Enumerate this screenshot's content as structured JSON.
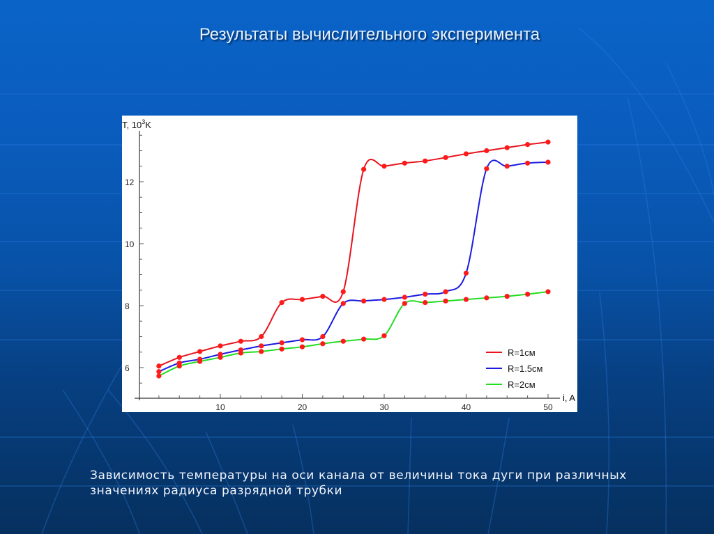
{
  "slide": {
    "title": "Результаты вычислительного эксперимента",
    "caption_lines": [
      "Зависимость температуры на оси канала от величины тока дуги при различных",
      "значениях радиуса разрядной трубки"
    ]
  },
  "colors": {
    "background_top": "#0a64c8",
    "background_bottom": "#06305f",
    "marker": "#ff1a1a",
    "series_r1": "#e8141e",
    "series_r15": "#1a1ae0",
    "series_r2": "#22dd22"
  },
  "chart_data": {
    "type": "line",
    "title": "",
    "xlabel": "i, A",
    "ylabel": "T, 10³K",
    "ylabel_parts": {
      "base": "T, 10",
      "sup": "3",
      "unit": "K"
    },
    "xlim": [
      0,
      52
    ],
    "ylim": [
      5.0,
      13.8
    ],
    "x_ticks": [
      10,
      20,
      30,
      40,
      50
    ],
    "y_ticks": [
      6,
      8,
      10,
      12
    ],
    "grid": false,
    "legend_position": "lower right, inside plot",
    "markers": "red filled circles on every data point",
    "x": [
      2.5,
      5,
      7.5,
      10,
      12.5,
      15,
      17.5,
      20,
      22.5,
      25,
      27.5,
      30,
      32.5,
      35,
      37.5,
      40,
      42.5,
      45,
      47.5,
      50
    ],
    "series": [
      {
        "name": "R=1см",
        "color": "#e8141e",
        "values": [
          6.05,
          6.33,
          6.52,
          6.7,
          6.85,
          7.0,
          8.1,
          8.2,
          8.3,
          8.45,
          12.4,
          12.5,
          12.6,
          12.67,
          12.78,
          12.9,
          13.0,
          13.1,
          13.2,
          13.28
        ]
      },
      {
        "name": "R=1.5см",
        "color": "#1a1ae0",
        "values": [
          5.87,
          6.15,
          6.27,
          6.43,
          6.57,
          6.7,
          6.8,
          6.9,
          7.0,
          8.07,
          8.15,
          8.2,
          8.27,
          8.37,
          8.45,
          9.05,
          12.42,
          12.5,
          12.6,
          12.63
        ]
      },
      {
        "name": "R=2см",
        "color": "#22dd22",
        "values": [
          5.73,
          6.05,
          6.2,
          6.33,
          6.47,
          6.52,
          6.6,
          6.67,
          6.77,
          6.85,
          6.92,
          7.03,
          8.07,
          8.1,
          8.15,
          8.2,
          8.25,
          8.3,
          8.37,
          8.45
        ]
      }
    ]
  }
}
